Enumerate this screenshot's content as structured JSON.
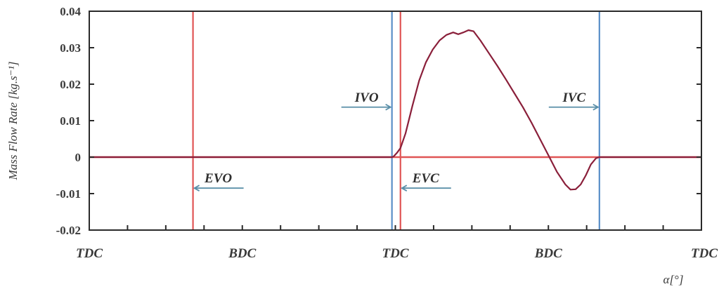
{
  "chart_data": {
    "type": "line",
    "ylabel": "Mass Flow Rate [kg.s⁻¹]",
    "xlabel": "α[°]",
    "ylim": [
      -0.02,
      0.04
    ],
    "yticks": [
      "0.04",
      "0.03",
      "0.02",
      "0.01",
      "0",
      "-0.01",
      "-0.02"
    ],
    "ytick_values": [
      0.04,
      0.03,
      0.02,
      0.01,
      0,
      -0.01,
      -0.02
    ],
    "xlim": [
      0,
      720
    ],
    "x_categories": [
      {
        "label": "TDC",
        "x": 0
      },
      {
        "label": "BDC",
        "x": 180
      },
      {
        "label": "TDC",
        "x": 360
      },
      {
        "label": "BDC",
        "x": 540
      },
      {
        "label": "TDC",
        "x": 720
      }
    ],
    "grid": false,
    "event_lines": [
      {
        "label": "EVO",
        "x": 122,
        "color": "#e05555"
      },
      {
        "label": "IVO",
        "x": 356,
        "color": "#5a8fc8"
      },
      {
        "label": "EVC",
        "x": 366,
        "color": "#e05555"
      },
      {
        "label": "IVC",
        "x": 600,
        "color": "#5a8fc8"
      }
    ],
    "annotations": [
      {
        "text": "EVO",
        "x": 122,
        "y": -0.0085
      },
      {
        "text": "IVO",
        "x": 356,
        "y": 0.0137
      },
      {
        "text": "EVC",
        "x": 366,
        "y": -0.0085
      },
      {
        "text": "IVC",
        "x": 600,
        "y": 0.0137
      }
    ],
    "series": [
      {
        "color": "#8a1f3a",
        "points": [
          [
            0,
            0
          ],
          [
            120,
            0
          ],
          [
            250,
            0
          ],
          [
            356,
            0
          ],
          [
            358,
            0.0002
          ],
          [
            362,
            0.0012
          ],
          [
            366,
            0.0025
          ],
          [
            372,
            0.0065
          ],
          [
            380,
            0.014
          ],
          [
            388,
            0.021
          ],
          [
            396,
            0.026
          ],
          [
            404,
            0.0295
          ],
          [
            412,
            0.032
          ],
          [
            420,
            0.0335
          ],
          [
            428,
            0.0342
          ],
          [
            434,
            0.0337
          ],
          [
            440,
            0.0342
          ],
          [
            446,
            0.0348
          ],
          [
            452,
            0.0345
          ],
          [
            460,
            0.032
          ],
          [
            470,
            0.0285
          ],
          [
            480,
            0.025
          ],
          [
            490,
            0.0213
          ],
          [
            500,
            0.0175
          ],
          [
            510,
            0.0137
          ],
          [
            520,
            0.0095
          ],
          [
            530,
            0.005
          ],
          [
            540,
            0.0005
          ],
          [
            550,
            -0.004
          ],
          [
            560,
            -0.0075
          ],
          [
            566,
            -0.0089
          ],
          [
            572,
            -0.0088
          ],
          [
            578,
            -0.0075
          ],
          [
            584,
            -0.005
          ],
          [
            590,
            -0.002
          ],
          [
            596,
            -0.0003
          ],
          [
            600,
            0
          ],
          [
            660,
            0
          ],
          [
            720,
            0
          ]
        ]
      }
    ]
  }
}
